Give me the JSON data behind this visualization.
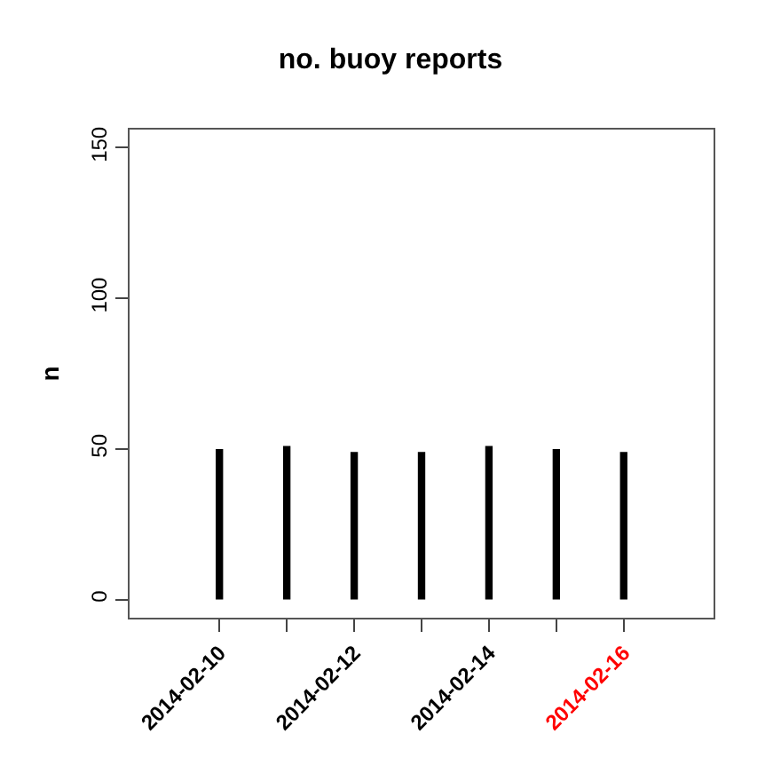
{
  "chart_data": {
    "type": "bar",
    "title": "no. buoy reports",
    "ylabel": "n",
    "x": [
      "2014-02-10",
      "2014-02-11",
      "2014-02-12",
      "2014-02-13",
      "2014-02-14",
      "2014-02-15",
      "2014-02-16"
    ],
    "values": [
      50,
      51,
      49,
      49,
      51,
      50,
      49
    ],
    "color": "#000000",
    "xlim": [
      "2014-02-08T16:00",
      "2014-02-17T08:00"
    ],
    "xticks": [
      {
        "value": "2014-02-10",
        "label": "2014-02-10"
      },
      {
        "value": "2014-02-11",
        "label": null
      },
      {
        "value": "2014-02-12",
        "label": "2014-02-12"
      },
      {
        "value": "2014-02-13",
        "label": null
      },
      {
        "value": "2014-02-14",
        "label": "2014-02-14"
      },
      {
        "value": "2014-02-15",
        "label": null
      },
      {
        "value": "2014-02-16",
        "label": "2014-02-16"
      }
    ],
    "ylim": [
      -6,
      156
    ],
    "yticks": [
      0,
      50,
      100,
      150
    ]
  }
}
